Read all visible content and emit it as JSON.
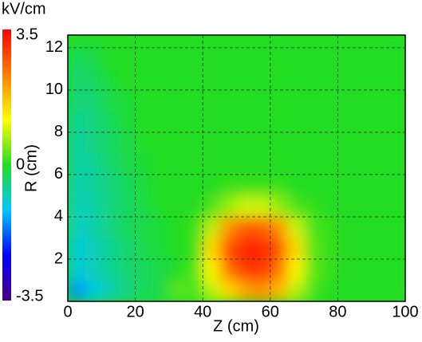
{
  "chart_data": {
    "type": "heatmap",
    "colorbar_label": "kV/cm",
    "clim": [
      -3.5,
      3.5
    ],
    "cticks": [
      3.5,
      0,
      -3.5
    ],
    "colormap": [
      "#4b0082",
      "#0000ff",
      "#00c8ff",
      "#22dd22",
      "#ffff00",
      "#ff8000",
      "#ff0000"
    ],
    "xlabel": "Z (cm)",
    "ylabel": "R (cm)",
    "xlim": [
      0,
      100
    ],
    "ylim": [
      0,
      12.6
    ],
    "xticks": [
      0,
      20,
      40,
      60,
      80,
      100
    ],
    "yticks": [
      2,
      4,
      6,
      8,
      10,
      12
    ],
    "grid": true,
    "xbins": [
      0,
      5,
      10,
      15,
      20,
      25,
      30,
      35,
      40,
      45,
      50,
      55,
      60,
      65,
      70,
      75,
      80,
      85,
      90,
      95,
      100
    ],
    "ybins": [
      0,
      1,
      2,
      3,
      4,
      5,
      6,
      7,
      8,
      9,
      10,
      11,
      12,
      12.6
    ],
    "z": [
      [
        -1.5,
        -1,
        -0.8,
        -0.5,
        -0.3,
        -0.2,
        0.3,
        0.2,
        0.8,
        1.5,
        2.0,
        2.2,
        1.8,
        0.8,
        0.2,
        0,
        0,
        0,
        0,
        0
      ],
      [
        -1,
        -0.8,
        -0.6,
        -0.4,
        -0.3,
        -0.2,
        0,
        0.2,
        1.2,
        2.5,
        3.0,
        3.0,
        2.5,
        1.2,
        0.3,
        0.1,
        0,
        0,
        0,
        0
      ],
      [
        -1,
        -0.8,
        -0.6,
        -0.4,
        -0.2,
        -0.1,
        0,
        0.1,
        1.5,
        2.8,
        3.2,
        3.2,
        2.8,
        1.5,
        0.3,
        0.1,
        0,
        0,
        0,
        0
      ],
      [
        -0.9,
        -0.7,
        -0.5,
        -0.3,
        -0.2,
        -0.1,
        0,
        0.1,
        0.8,
        2.2,
        2.7,
        2.7,
        2.2,
        0.9,
        0.2,
        0.1,
        0,
        0,
        0,
        0
      ],
      [
        -0.8,
        -0.7,
        -0.5,
        -0.3,
        -0.2,
        0,
        0,
        0,
        0.2,
        0.6,
        0.9,
        0.9,
        0.6,
        0.2,
        0.1,
        0,
        0,
        0,
        0,
        0
      ],
      [
        -0.8,
        -0.6,
        -0.5,
        -0.3,
        -0.1,
        0,
        0,
        0,
        0,
        0.1,
        0.1,
        0.1,
        0.1,
        0,
        0,
        0,
        0,
        0,
        0,
        0
      ],
      [
        -0.7,
        -0.6,
        -0.4,
        -0.2,
        -0.1,
        0,
        0,
        0,
        0,
        0,
        0,
        0,
        0,
        0,
        0,
        0,
        0,
        0,
        0,
        0
      ],
      [
        -0.7,
        -0.5,
        -0.3,
        -0.2,
        0,
        0,
        0,
        0,
        0,
        0,
        0,
        0,
        0,
        0,
        0,
        0,
        0,
        0,
        0,
        0
      ],
      [
        -0.6,
        -0.5,
        -0.3,
        -0.1,
        0,
        0,
        0,
        0,
        0,
        0,
        0,
        0,
        0,
        0,
        0,
        0,
        0,
        0,
        0,
        0
      ],
      [
        -0.5,
        -0.4,
        -0.2,
        -0.1,
        0,
        0,
        0,
        0,
        0,
        0,
        0,
        0,
        0,
        0,
        0,
        0,
        0,
        0,
        0,
        0
      ],
      [
        -0.4,
        -0.3,
        -0.1,
        0,
        0,
        0,
        0,
        0,
        0,
        0,
        0,
        0,
        0,
        0,
        0,
        0,
        0,
        0,
        0,
        0
      ],
      [
        -0.3,
        -0.2,
        0,
        0,
        0,
        0,
        0,
        0,
        0,
        0,
        0,
        0,
        0,
        0,
        0,
        0,
        0,
        0,
        0,
        0
      ],
      [
        0,
        0,
        0,
        0,
        0,
        0,
        0,
        0,
        0,
        0,
        0,
        0,
        0,
        0,
        0,
        0,
        0,
        0,
        0,
        0
      ]
    ]
  }
}
